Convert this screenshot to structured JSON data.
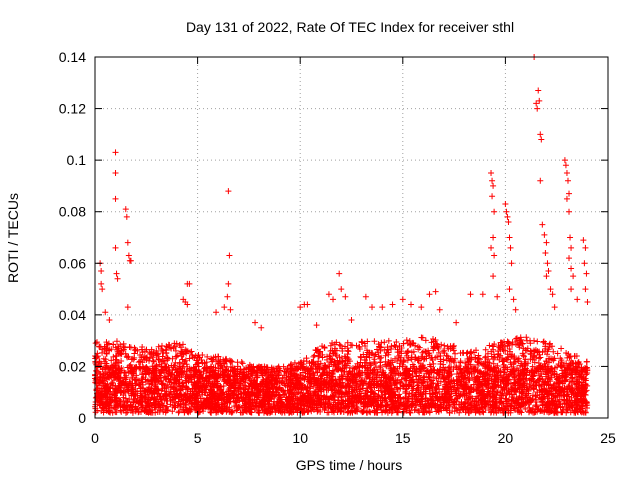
{
  "chart_data": {
    "type": "scatter",
    "title": "Day 131 of 2022, Rate Of TEC Index for receiver sthl",
    "xlabel": "GPS time / hours",
    "ylabel": "ROTI / TECUs",
    "xlim": [
      0,
      25
    ],
    "ylim": [
      0,
      0.14
    ],
    "xticks": [
      0,
      5,
      10,
      15,
      20,
      25
    ],
    "yticks": [
      0,
      0.02,
      0.04,
      0.06,
      0.08,
      0.1,
      0.12,
      0.14
    ],
    "xtick_labels": [
      "0",
      "5",
      "10",
      "15",
      "20",
      "25"
    ],
    "ytick_labels": [
      "0",
      "0.02",
      "0.04",
      "0.06",
      "0.08",
      "0.1",
      "0.12",
      "0.14"
    ],
    "grid": true,
    "marker": "+",
    "color": "#ff0000",
    "series": [
      {
        "name": "ROTI",
        "band_hours": [
          0,
          1,
          2,
          3,
          4,
          5,
          6,
          7,
          8,
          9,
          10,
          11,
          12,
          13,
          14,
          15,
          16,
          17,
          18,
          19,
          20,
          21,
          22,
          23,
          24
        ],
        "band_typical_max": [
          0.03,
          0.03,
          0.028,
          0.028,
          0.03,
          0.025,
          0.024,
          0.022,
          0.02,
          0.02,
          0.022,
          0.028,
          0.03,
          0.03,
          0.03,
          0.03,
          0.032,
          0.03,
          0.026,
          0.028,
          0.03,
          0.032,
          0.03,
          0.026,
          0.022
        ],
        "points": [
          [
            0.25,
            0.06
          ],
          [
            0.3,
            0.057
          ],
          [
            0.3,
            0.052
          ],
          [
            0.35,
            0.05
          ],
          [
            0.5,
            0.041
          ],
          [
            0.7,
            0.038
          ],
          [
            1.0,
            0.103
          ],
          [
            1.0,
            0.095
          ],
          [
            1.0,
            0.085
          ],
          [
            1.0,
            0.066
          ],
          [
            1.05,
            0.056
          ],
          [
            1.1,
            0.054
          ],
          [
            1.5,
            0.081
          ],
          [
            1.55,
            0.078
          ],
          [
            1.6,
            0.068
          ],
          [
            1.65,
            0.063
          ],
          [
            1.7,
            0.061
          ],
          [
            1.75,
            0.061
          ],
          [
            1.6,
            0.043
          ],
          [
            4.3,
            0.046
          ],
          [
            4.4,
            0.045
          ],
          [
            4.5,
            0.052
          ],
          [
            4.6,
            0.052
          ],
          [
            4.5,
            0.044
          ],
          [
            5.9,
            0.041
          ],
          [
            6.3,
            0.043
          ],
          [
            6.5,
            0.088
          ],
          [
            6.55,
            0.063
          ],
          [
            6.5,
            0.052
          ],
          [
            6.45,
            0.047
          ],
          [
            6.6,
            0.042
          ],
          [
            7.8,
            0.037
          ],
          [
            8.1,
            0.035
          ],
          [
            10.0,
            0.043
          ],
          [
            10.2,
            0.044
          ],
          [
            10.35,
            0.044
          ],
          [
            10.8,
            0.036
          ],
          [
            11.4,
            0.048
          ],
          [
            11.6,
            0.046
          ],
          [
            11.9,
            0.056
          ],
          [
            12.0,
            0.05
          ],
          [
            12.2,
            0.047
          ],
          [
            12.5,
            0.038
          ],
          [
            13.2,
            0.047
          ],
          [
            13.5,
            0.043
          ],
          [
            14.0,
            0.043
          ],
          [
            14.5,
            0.044
          ],
          [
            15.0,
            0.046
          ],
          [
            15.4,
            0.044
          ],
          [
            15.9,
            0.043
          ],
          [
            16.3,
            0.048
          ],
          [
            16.6,
            0.049
          ],
          [
            16.8,
            0.042
          ],
          [
            17.6,
            0.037
          ],
          [
            18.3,
            0.048
          ],
          [
            18.9,
            0.048
          ],
          [
            19.3,
            0.095
          ],
          [
            19.35,
            0.092
          ],
          [
            19.4,
            0.09
          ],
          [
            19.35,
            0.086
          ],
          [
            19.45,
            0.08
          ],
          [
            19.4,
            0.07
          ],
          [
            19.3,
            0.066
          ],
          [
            19.45,
            0.063
          ],
          [
            19.4,
            0.055
          ],
          [
            19.6,
            0.047
          ],
          [
            20.0,
            0.083
          ],
          [
            20.05,
            0.08
          ],
          [
            20.1,
            0.078
          ],
          [
            20.15,
            0.076
          ],
          [
            20.2,
            0.07
          ],
          [
            20.25,
            0.066
          ],
          [
            20.3,
            0.06
          ],
          [
            20.2,
            0.05
          ],
          [
            20.4,
            0.046
          ],
          [
            20.5,
            0.042
          ],
          [
            21.4,
            0.14
          ],
          [
            21.5,
            0.122
          ],
          [
            21.55,
            0.12
          ],
          [
            21.6,
            0.127
          ],
          [
            21.65,
            0.123
          ],
          [
            21.7,
            0.11
          ],
          [
            21.75,
            0.108
          ],
          [
            21.7,
            0.092
          ],
          [
            21.8,
            0.075
          ],
          [
            21.9,
            0.071
          ],
          [
            22.0,
            0.068
          ],
          [
            21.95,
            0.064
          ],
          [
            22.05,
            0.06
          ],
          [
            22.1,
            0.057
          ],
          [
            22.0,
            0.055
          ],
          [
            22.2,
            0.05
          ],
          [
            22.3,
            0.048
          ],
          [
            22.4,
            0.043
          ],
          [
            22.9,
            0.1
          ],
          [
            22.95,
            0.098
          ],
          [
            23.0,
            0.095
          ],
          [
            23.05,
            0.092
          ],
          [
            23.1,
            0.087
          ],
          [
            23.0,
            0.085
          ],
          [
            23.1,
            0.08
          ],
          [
            23.15,
            0.07
          ],
          [
            23.2,
            0.066
          ],
          [
            23.1,
            0.062
          ],
          [
            23.2,
            0.058
          ],
          [
            23.3,
            0.055
          ],
          [
            23.2,
            0.05
          ],
          [
            23.5,
            0.046
          ],
          [
            23.8,
            0.069
          ],
          [
            23.9,
            0.066
          ],
          [
            23.85,
            0.06
          ],
          [
            23.95,
            0.056
          ],
          [
            23.9,
            0.05
          ],
          [
            24.0,
            0.045
          ]
        ]
      }
    ]
  }
}
